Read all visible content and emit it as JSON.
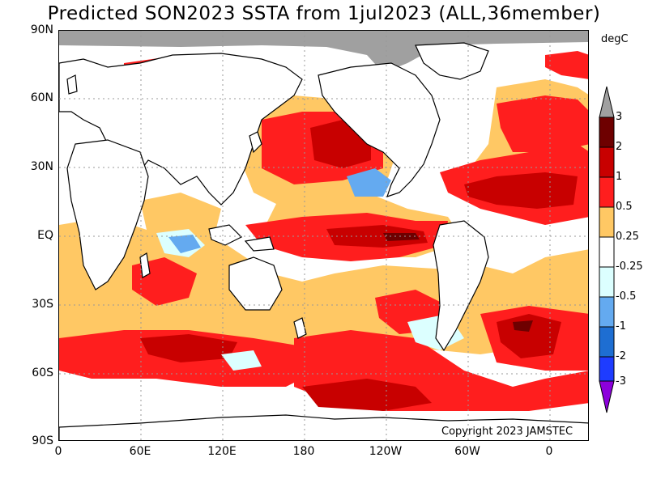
{
  "title": "Predicted SON2023 SSTA from 1jul2023 (ALL,36member)",
  "unit": "degC",
  "copyright": "Copyright 2023 JAMSTEC",
  "lat_labels": [
    "90N",
    "60N",
    "30N",
    "EQ",
    "30S",
    "60S",
    "90S"
  ],
  "lon_labels": [
    "0",
    "60E",
    "120E",
    "180",
    "120W",
    "60W",
    "0"
  ],
  "colorbar": {
    "labels": [
      "3",
      "2",
      "1",
      "0.5",
      "0.25",
      "-0.25",
      "-0.5",
      "-1",
      "-2",
      "-3"
    ],
    "colors": [
      "#a0a0a0",
      "#6e0000",
      "#c80000",
      "#ff1e1e",
      "#ffc864",
      "#ffffff",
      "#dcffff",
      "#64aaf0",
      "#1e6ed2",
      "#1e3cff",
      "#8c00dc"
    ],
    "levels": [
      3,
      2,
      1,
      0.5,
      0.25,
      -0.25,
      -0.5,
      -1,
      -2,
      -3
    ]
  },
  "sst_colors": {
    "above_3": "#a0a0a0",
    "2_to_3": "#6e0000",
    "1_to_2": "#c80000",
    "0.5_to_1": "#ff1e1e",
    "0.25_to_0.5": "#ffc864",
    "neutral": "#ffffff",
    "minus_0.25_to_minus_0.5": "#dcffff",
    "minus_0.5_to_minus_1": "#64aaf0",
    "land": "#ffffff",
    "coast": "#000000",
    "grid": "#999999"
  }
}
